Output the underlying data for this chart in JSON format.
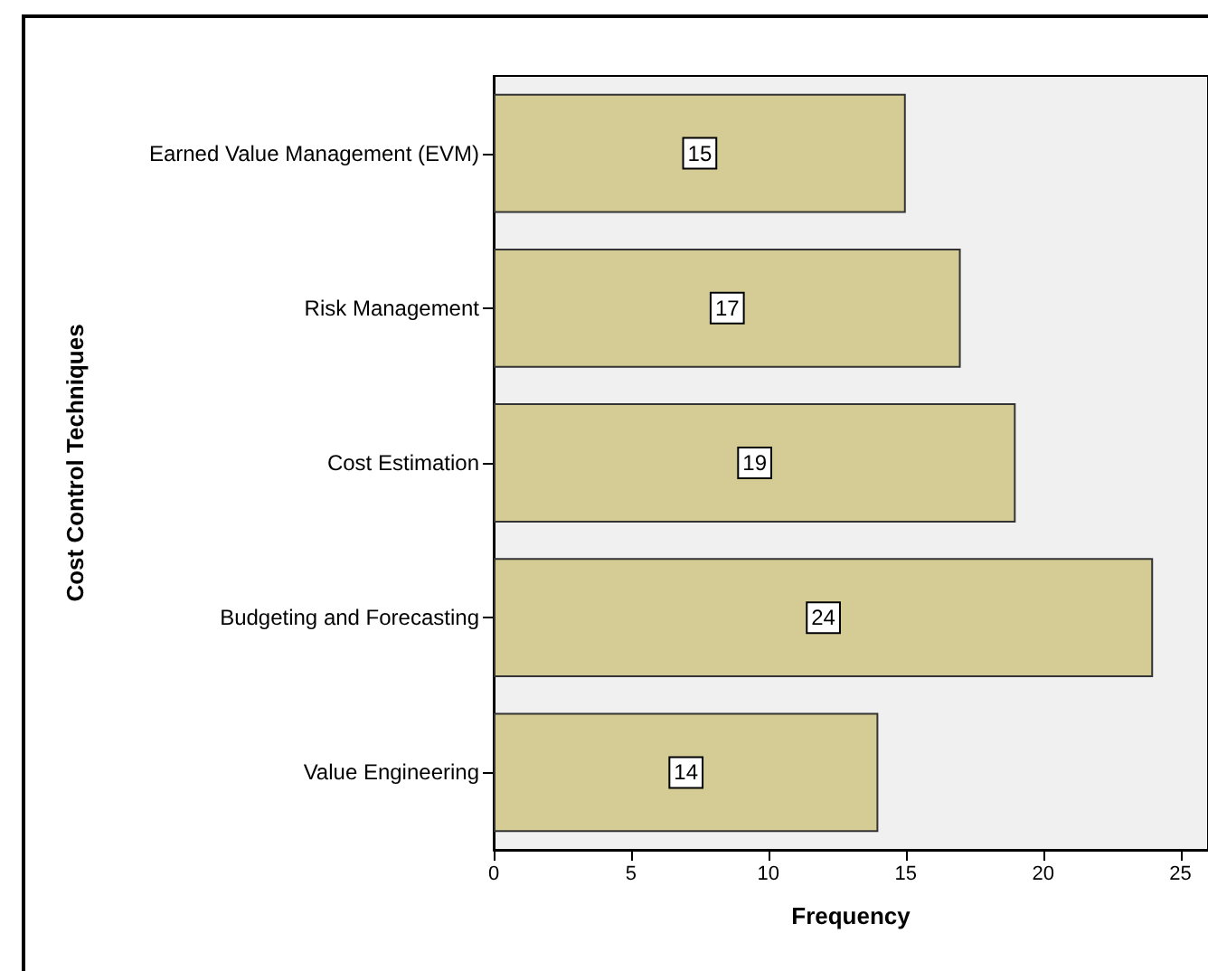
{
  "chart_data": {
    "type": "bar",
    "orientation": "horizontal",
    "categories": [
      "Earned Value Management (EVM)",
      "Risk Management",
      "Cost Estimation",
      "Budgeting and Forecasting",
      "Value Engineering"
    ],
    "values": [
      15,
      17,
      19,
      24,
      14
    ],
    "color": "#d4cc94",
    "data_labels": true,
    "xlabel": "Frequency",
    "ylabel": "Cost Control Techniques",
    "xlim": [
      0,
      26
    ],
    "xticks": [
      0,
      5,
      10,
      15,
      20,
      25
    ],
    "grid": false
  }
}
